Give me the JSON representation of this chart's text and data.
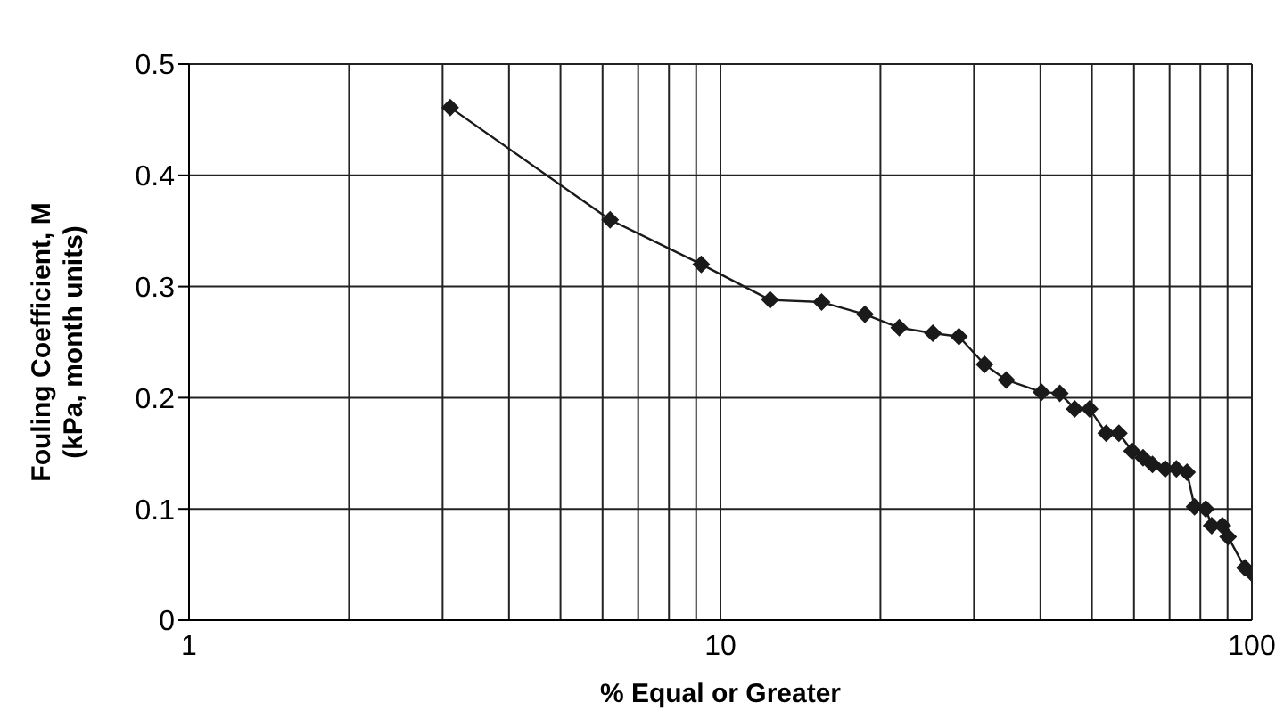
{
  "chart_data": {
    "type": "line",
    "xlabel": "% Equal or Greater",
    "ylabel": "Fouling Coefficient, M\n(kPa, month units)",
    "log": "x",
    "grid": true,
    "marker": "diamond",
    "line_style": "solid",
    "xlim": [
      1,
      100
    ],
    "xticks": [
      1,
      {
        "value": 2,
        "label": null
      },
      {
        "value": 3,
        "label": null
      },
      {
        "value": 4,
        "label": null
      },
      {
        "value": 5,
        "label": null
      },
      {
        "value": 6,
        "label": null
      },
      {
        "value": 7,
        "label": null
      },
      {
        "value": 8,
        "label": null
      },
      {
        "value": 9,
        "label": null
      },
      10,
      {
        "value": 20,
        "label": null
      },
      {
        "value": 30,
        "label": null
      },
      {
        "value": 40,
        "label": null
      },
      {
        "value": 50,
        "label": null
      },
      {
        "value": 60,
        "label": null
      },
      {
        "value": 70,
        "label": null
      },
      {
        "value": 80,
        "label": null
      },
      {
        "value": 90,
        "label": null
      },
      100
    ],
    "ylim": [
      0,
      0.5
    ],
    "yticks": [
      0,
      0.1,
      0.2,
      0.3,
      0.4,
      0.5
    ],
    "series": [
      {
        "color": "#1a1a1a",
        "x": [
          3.1,
          6.2,
          9.2,
          12.4,
          15.5,
          18.7,
          21.7,
          25.1,
          28.1,
          31.4,
          34.5,
          40.2,
          43.5,
          46.4,
          49.5,
          53.2,
          56.2,
          59.5,
          62.4,
          65,
          68.7,
          72.1,
          75.5,
          78,
          81.9,
          84,
          88,
          90.2,
          97,
          100
        ],
        "values": [
          0.461,
          0.36,
          0.32,
          0.288,
          0.286,
          0.275,
          0.263,
          0.258,
          0.255,
          0.23,
          0.216,
          0.205,
          0.204,
          0.19,
          0.19,
          0.168,
          0.168,
          0.152,
          0.146,
          0.14,
          0.136,
          0.136,
          0.133,
          0.102,
          0.1,
          0.085,
          0.085,
          0.075,
          0.047,
          0.042
        ]
      }
    ]
  }
}
